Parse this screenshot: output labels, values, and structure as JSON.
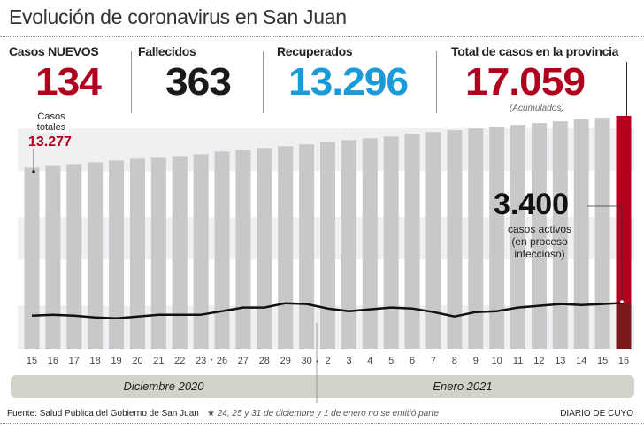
{
  "title": "Evolución de coronavirus en San Juan",
  "stats": [
    {
      "label": "Casos NUEVOS",
      "value": "134",
      "color": "#b0001e"
    },
    {
      "label": "Fallecidos",
      "value": "363",
      "color": "#1a1a1a"
    },
    {
      "label": "Recuperados",
      "value": "13.296",
      "color": "#1a9ad6"
    },
    {
      "label": "Total de casos en la provincia",
      "value": "17.059",
      "color": "#b0001e",
      "note": "(Acumulados)"
    }
  ],
  "annotations": {
    "first_label": "Casos totales",
    "first_value": "13.277",
    "active_value": "3.400",
    "active_label": "casos activos (en proceso infeccioso)"
  },
  "months": [
    "Diciembre 2020",
    "Enero 2021"
  ],
  "footer": {
    "source": "Fuente: Salud Pública del Gobierno de San Juan",
    "note": "24, 25 y 31 de diciembre y 1 de enero no se emitió parte",
    "brand": "DIARIO DE CUYO"
  },
  "chart_data": {
    "type": "bar",
    "categories": [
      "15",
      "16",
      "17",
      "18",
      "19",
      "20",
      "21",
      "22",
      "23",
      "26",
      "27",
      "28",
      "29",
      "30",
      "2",
      "3",
      "4",
      "5",
      "6",
      "7",
      "8",
      "9",
      "10",
      "11",
      "12",
      "13",
      "14",
      "15",
      "16"
    ],
    "starred_after": [
      "23",
      "30"
    ],
    "series": [
      {
        "name": "Casos totales",
        "type": "bar",
        "values": [
          13277,
          13410,
          13540,
          13670,
          13800,
          13930,
          13990,
          14120,
          14250,
          14450,
          14580,
          14710,
          14840,
          14970,
          15160,
          15290,
          15420,
          15550,
          15750,
          15880,
          16010,
          16140,
          16270,
          16400,
          16530,
          16660,
          16790,
          16920,
          17059
        ]
      },
      {
        "name": "casos activos",
        "type": "line",
        "values": [
          2470,
          2540,
          2470,
          2340,
          2280,
          2410,
          2540,
          2540,
          2540,
          2800,
          3060,
          3060,
          3380,
          3320,
          2990,
          2800,
          2930,
          3060,
          2990,
          2730,
          2410,
          2730,
          2800,
          3060,
          3190,
          3320,
          3250,
          3320,
          3400
        ]
      }
    ],
    "ylim": [
      0,
      17500
    ],
    "colors": {
      "bar": "#c8c8cb",
      "highlight": "#b5001e",
      "active_highlight": "#7a1a1f",
      "line": "#111111",
      "band": "#f0f0f2",
      "month_band": "#d4d3c9"
    },
    "grid": false
  }
}
